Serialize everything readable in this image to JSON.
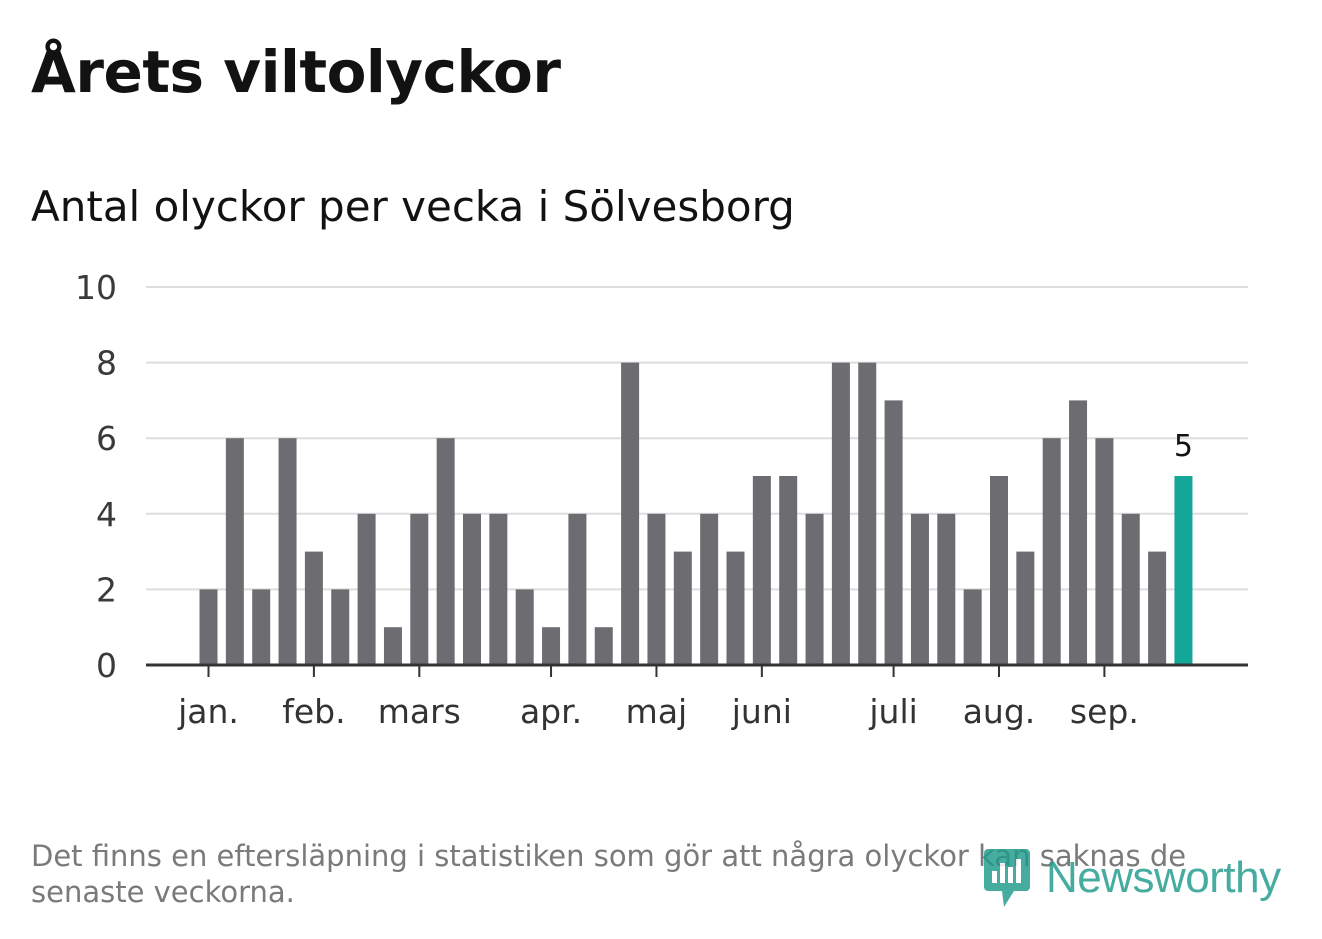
{
  "title": "Årets viltolyckor",
  "subtitle": "Antal olyckor per vecka i Sölvesborg",
  "note": "Det finns en eftersläpning i statistiken som gör att några olyckor kan saknas de senaste veckorna.",
  "logo": {
    "text": "Newsworthy",
    "icon": "newsworthy-logo-icon"
  },
  "colors": {
    "bar": "#6d6c71",
    "highlight": "#15a69a",
    "grid": "#dddddd",
    "axis": "#333333"
  },
  "chart_data": {
    "type": "bar",
    "title": "Antal olyckor per vecka i Sölvesborg",
    "xlabel": "",
    "ylabel": "",
    "ylim": [
      0,
      10
    ],
    "y_ticks": [
      "0",
      "2",
      "4",
      "6",
      "8",
      "10"
    ],
    "grid": true,
    "weeks": [
      1,
      2,
      3,
      4,
      5,
      6,
      7,
      8,
      9,
      10,
      11,
      12,
      13,
      14,
      15,
      16,
      17,
      18,
      19,
      20,
      21,
      22,
      23,
      24,
      25,
      26,
      27,
      28,
      29,
      30,
      31,
      32,
      33,
      34,
      35,
      36,
      37,
      38
    ],
    "values": [
      2,
      6,
      2,
      6,
      3,
      2,
      4,
      1,
      4,
      6,
      4,
      4,
      2,
      1,
      4,
      1,
      8,
      4,
      3,
      4,
      3,
      5,
      5,
      4,
      8,
      8,
      7,
      4,
      4,
      2,
      5,
      3,
      6,
      7,
      6,
      4,
      3,
      5
    ],
    "highlight_index": 37,
    "highlight_label": "5",
    "month_labels": [
      {
        "label": "jan.",
        "week": 1
      },
      {
        "label": "feb.",
        "week": 5
      },
      {
        "label": "mars",
        "week": 9
      },
      {
        "label": "apr.",
        "week": 14
      },
      {
        "label": "maj",
        "week": 18
      },
      {
        "label": "juni",
        "week": 22
      },
      {
        "label": "juli",
        "week": 27
      },
      {
        "label": "aug.",
        "week": 31
      },
      {
        "label": "sep.",
        "week": 35
      }
    ]
  }
}
